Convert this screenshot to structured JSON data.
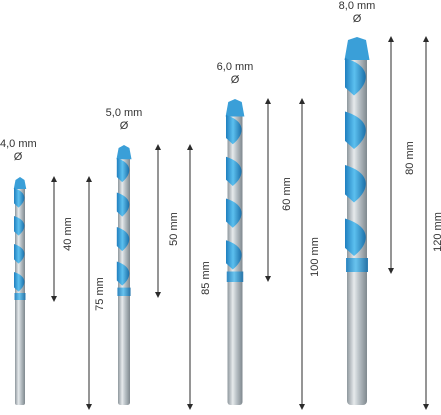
{
  "colors": {
    "accent_blue": "#3a9fd8",
    "shank_steel": "#a9b3ba",
    "arrow": "#2b2b2b"
  },
  "bits": [
    {
      "diameter_value": "4,0 mm",
      "diameter_symbol": "Ø",
      "flute_length": "40 mm",
      "total_length": "75 mm"
    },
    {
      "diameter_value": "5,0 mm",
      "diameter_symbol": "Ø",
      "flute_length": "50 mm",
      "total_length": "85 mm"
    },
    {
      "diameter_value": "6,0 mm",
      "diameter_symbol": "Ø",
      "flute_length": "60 mm",
      "total_length": "100 mm"
    },
    {
      "diameter_value": "8,0 mm",
      "diameter_symbol": "Ø",
      "flute_length": "80 mm",
      "total_length": "120 mm"
    }
  ]
}
